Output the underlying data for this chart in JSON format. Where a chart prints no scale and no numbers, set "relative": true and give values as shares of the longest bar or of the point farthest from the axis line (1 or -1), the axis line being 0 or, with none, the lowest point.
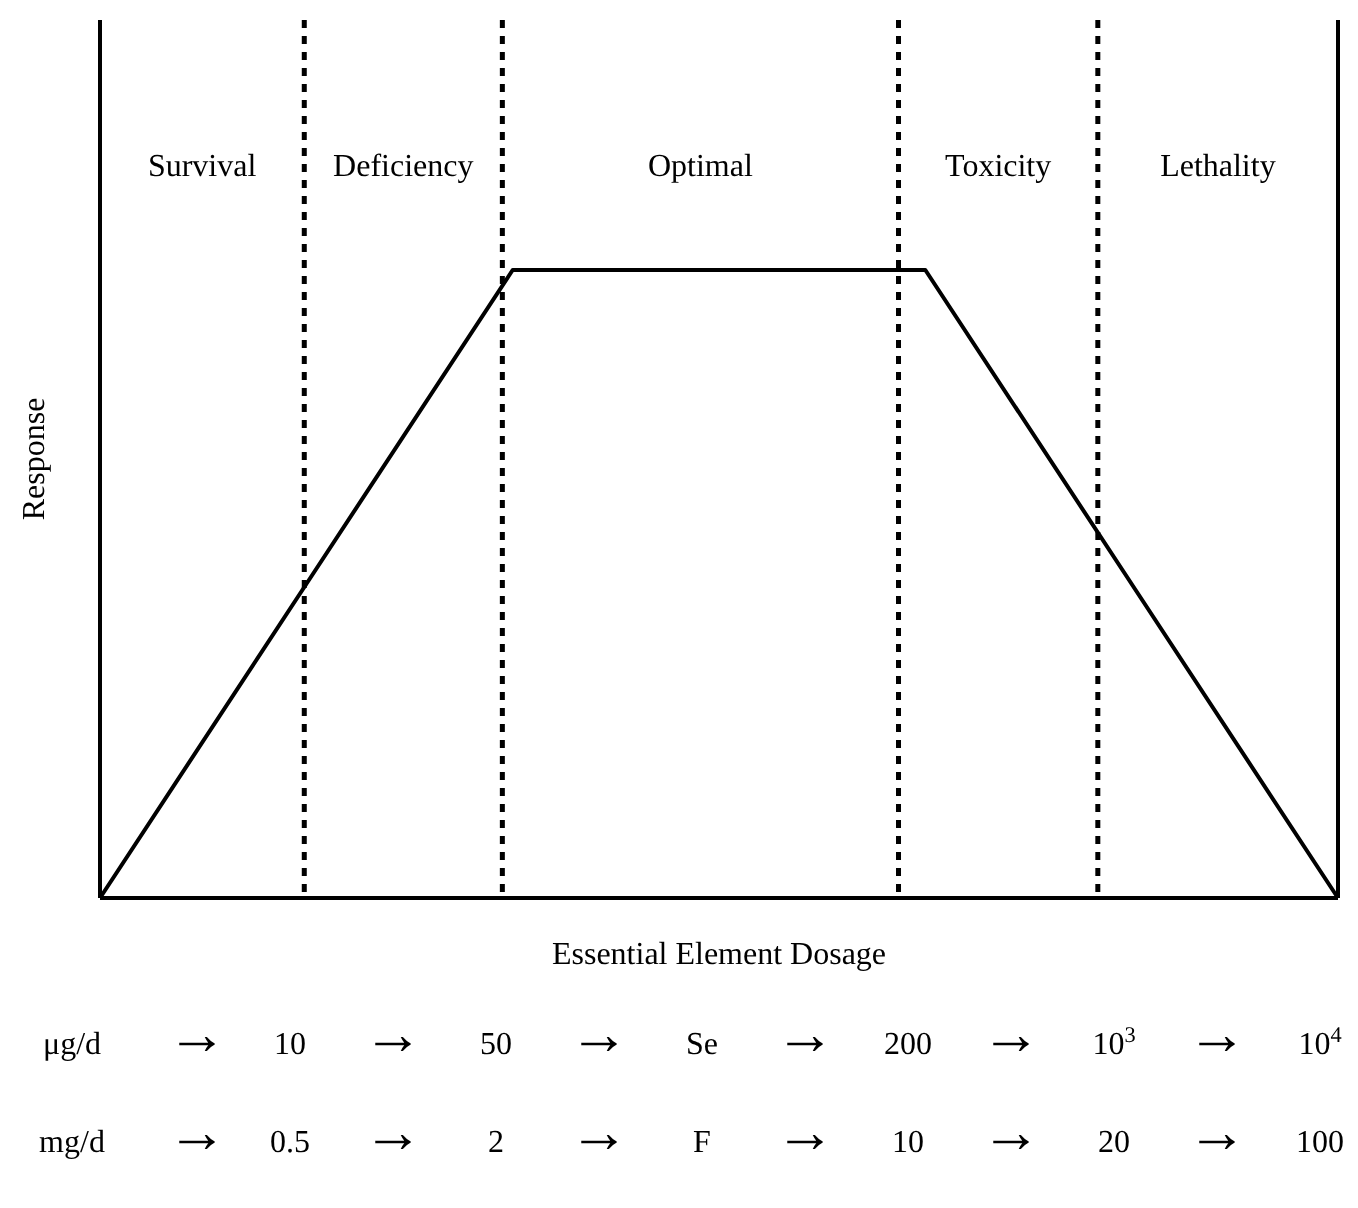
{
  "chart_data": {
    "type": "line",
    "xlabel": "Essential Element Dosage",
    "ylabel": "Response",
    "relative": true,
    "categories": [
      null,
      null,
      null,
      null,
      null,
      null,
      null
    ],
    "values": [
      0,
      0.5,
      1,
      1,
      1,
      0.5,
      0
    ],
    "color": "#000000",
    "annotations": [
      "Survival",
      "Deficiency",
      "Optimal",
      "Toxicity",
      "Lethality",
      "μg/d → 10 → 50 → Se → 200 → 10$^{3}$ → 10$^{4}$",
      "mg/d → 0.5 → 2 → F → 10 → 20 → 100"
    ]
  }
}
